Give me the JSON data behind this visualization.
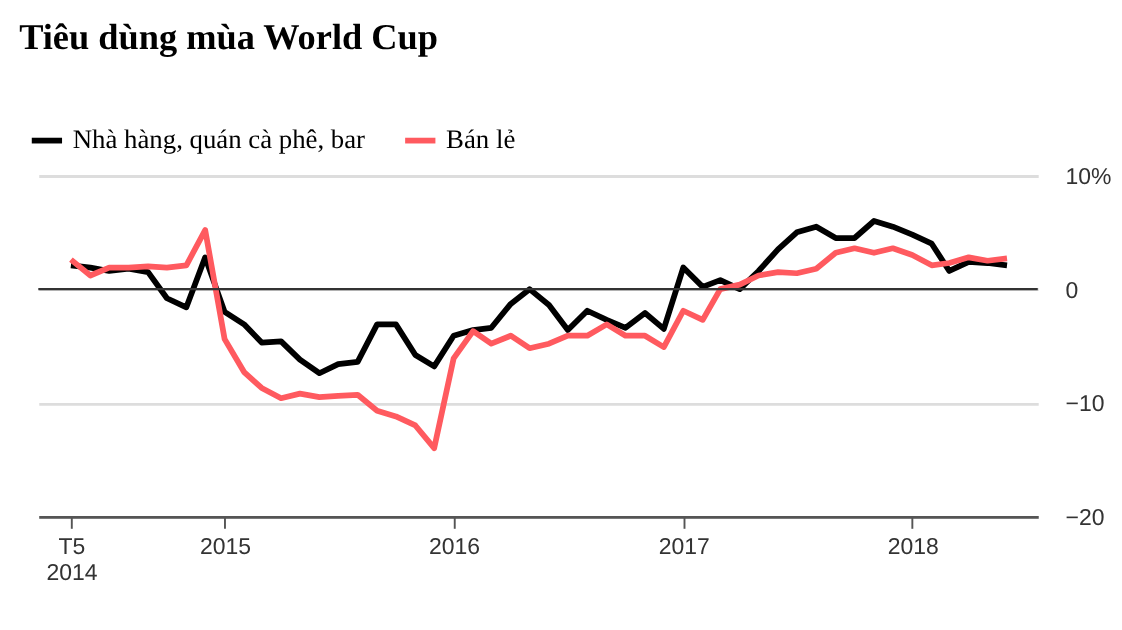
{
  "chart_data": {
    "type": "line",
    "title": "Tiêu dùng mùa World Cup",
    "x": [
      "2014-05",
      "2014-06",
      "2014-07",
      "2014-08",
      "2014-09",
      "2014-10",
      "2014-11",
      "2014-12",
      "2015-01",
      "2015-02",
      "2015-03",
      "2015-04",
      "2015-05",
      "2015-06",
      "2015-07",
      "2015-08",
      "2015-09",
      "2015-10",
      "2015-11",
      "2015-12",
      "2016-01",
      "2016-02",
      "2016-03",
      "2016-04",
      "2016-05",
      "2016-06",
      "2016-07",
      "2016-08",
      "2016-09",
      "2016-10",
      "2016-11",
      "2016-12",
      "2017-01",
      "2017-02",
      "2017-03",
      "2017-04",
      "2017-05",
      "2017-06",
      "2017-07",
      "2017-08",
      "2017-09",
      "2017-10",
      "2017-11",
      "2017-12",
      "2018-01",
      "2018-02",
      "2018-03",
      "2018-04",
      "2018-05",
      "2018-06"
    ],
    "series": [
      {
        "name": "Nhà hàng, quán cà phê, bar",
        "color": "#000000",
        "values": [
          2.1,
          1.9,
          1.6,
          1.8,
          1.5,
          -0.8,
          -1.6,
          2.8,
          -2.0,
          -3.1,
          -4.7,
          -4.6,
          -6.2,
          -7.4,
          -6.6,
          -6.4,
          -3.1,
          -3.1,
          -5.8,
          -6.8,
          -4.1,
          -3.6,
          -3.4,
          -1.3,
          0,
          -1.4,
          -3.6,
          -1.9,
          -2.7,
          -3.4,
          -2.1,
          -3.5,
          1.9,
          0.2,
          0.8,
          0,
          1.6,
          3.5,
          5.0,
          5.5,
          4.5,
          4.5,
          6.0,
          5.5,
          4.8,
          4.0,
          1.6,
          2.4,
          2.3,
          2.1
        ]
      },
      {
        "name": "Bán lẻ",
        "color": "#ff5a5f",
        "values": [
          2.6,
          1.2,
          1.9,
          1.9,
          2.0,
          1.9,
          2.1,
          5.2,
          -4.4,
          -7.3,
          -8.7,
          -9.6,
          -9.2,
          -9.5,
          -9.4,
          -9.3,
          -10.7,
          -11.2,
          -12.0,
          -14.0,
          -6.1,
          -3.7,
          -4.8,
          -4.1,
          -5.2,
          -4.8,
          -4.1,
          -4.1,
          -3.1,
          -4.1,
          -4.1,
          -5.1,
          -1.9,
          -2.7,
          0,
          0.4,
          1.2,
          1.5,
          1.4,
          1.8,
          3.2,
          3.6,
          3.2,
          3.6,
          3.0,
          2.1,
          2.3,
          2.8,
          2.5,
          2.7
        ]
      }
    ],
    "xlim": [
      "2014-03-10",
      "2018-07-20"
    ],
    "xticks": [
      {
        "value": "2014-05",
        "label": "T5\n2014"
      },
      {
        "value": "2015-01",
        "label": "2015"
      },
      {
        "value": "2016-01",
        "label": "2016"
      },
      {
        "value": "2017-01",
        "label": "2017"
      },
      {
        "value": "2018-01",
        "label": "2018"
      }
    ],
    "ylim": [
      -20,
      10
    ],
    "yticks": [
      {
        "value": 10,
        "label": "10%"
      },
      0,
      -10,
      -20
    ],
    "ref_lines": [
      {
        "axis": "y",
        "value": 0,
        "color": "#333333"
      }
    ],
    "grid": "y",
    "legend": "top left",
    "marker": "none",
    "line_style": "solid"
  }
}
